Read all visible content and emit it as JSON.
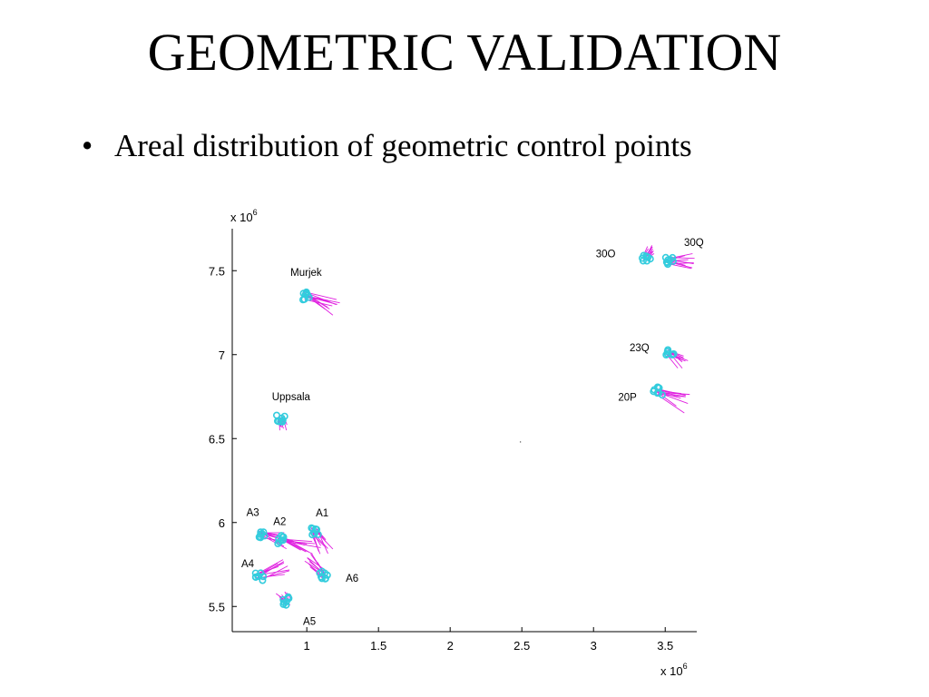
{
  "slide": {
    "title": "GEOMETRIC VALIDATION",
    "bullet_symbol": "•",
    "bullet_text": "Areal distribution of geometric control points"
  },
  "chart_data": {
    "type": "scatter",
    "title": "",
    "xlabel": "",
    "ylabel": "",
    "x_multiplier_label": {
      "base": "x 10",
      "exp": "6"
    },
    "y_multiplier_label": {
      "base": "x 10",
      "exp": "6"
    },
    "xlim": [
      0.48,
      3.72
    ],
    "ylim": [
      5.35,
      7.75
    ],
    "x_ticks": [
      1,
      1.5,
      2,
      2.5,
      3,
      3.5
    ],
    "x_tick_labels": [
      "1",
      "1.5",
      "2",
      "2.5",
      "3",
      "3.5"
    ],
    "y_ticks": [
      5.5,
      6,
      6.5,
      7,
      7.5
    ],
    "y_tick_labels": [
      "5.5",
      "6",
      "6.5",
      "7",
      "7.5"
    ],
    "grid": false,
    "colors": {
      "points": "#33ccdd",
      "vectors": "#e020e0",
      "axes": "#000000"
    },
    "control_point_groups": [
      {
        "name": "Murjek",
        "x": 1.0,
        "y": 7.35,
        "vector_dx": 0.2,
        "vector_dy": -0.07
      },
      {
        "name": "Uppsala",
        "x": 0.82,
        "y": 6.62,
        "vector_dx": 0.02,
        "vector_dy": -0.05
      },
      {
        "name": "30O",
        "x": 3.37,
        "y": 7.58,
        "vector_dx": 0.05,
        "vector_dy": 0.05
      },
      {
        "name": "30Q",
        "x": 3.53,
        "y": 7.56,
        "vector_dx": 0.15,
        "vector_dy": 0.0
      },
      {
        "name": "23Q",
        "x": 3.53,
        "y": 7.01,
        "vector_dx": 0.1,
        "vector_dy": -0.06
      },
      {
        "name": "20P",
        "x": 3.45,
        "y": 6.78,
        "vector_dx": 0.2,
        "vector_dy": -0.06
      },
      {
        "name": "A3",
        "x": 0.68,
        "y": 5.93,
        "vector_dx": 0.18,
        "vector_dy": -0.04
      },
      {
        "name": "A2",
        "x": 0.83,
        "y": 5.9,
        "vector_dx": 0.2,
        "vector_dy": -0.06
      },
      {
        "name": "A1",
        "x": 1.05,
        "y": 5.95,
        "vector_dx": 0.08,
        "vector_dy": -0.12
      },
      {
        "name": "A4",
        "x": 0.67,
        "y": 5.68,
        "vector_dx": 0.18,
        "vector_dy": 0.05
      },
      {
        "name": "A5",
        "x": 0.86,
        "y": 5.53,
        "vector_dx": -0.04,
        "vector_dy": 0.04
      },
      {
        "name": "A6",
        "x": 1.12,
        "y": 5.69,
        "vector_dx": -0.1,
        "vector_dy": 0.1
      }
    ]
  }
}
